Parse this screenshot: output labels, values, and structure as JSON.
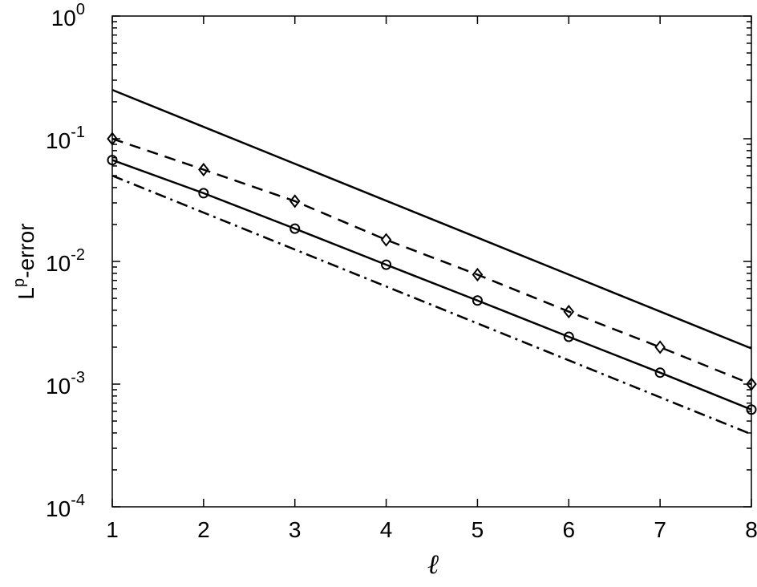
{
  "chart_data": {
    "type": "line",
    "xlabel": "ℓ",
    "ylabel": "L",
    "ylabel_superscript": "p",
    "ylabel_suffix": "-error",
    "x": [
      1,
      2,
      3,
      4,
      5,
      6,
      7,
      8
    ],
    "xlim": [
      1,
      8
    ],
    "xticks": [
      1,
      2,
      3,
      4,
      5,
      6,
      7,
      8
    ],
    "ylim": [
      0.0001,
      1
    ],
    "yscale": "log",
    "yticks": [
      {
        "value": 0.0001,
        "label": "10",
        "exponent": "-4"
      },
      {
        "value": 0.001,
        "label": "10",
        "exponent": "-3"
      },
      {
        "value": 0.01,
        "label": "10",
        "exponent": "-2"
      },
      {
        "value": 0.1,
        "label": "10",
        "exponent": "-1"
      },
      {
        "value": 1,
        "label": "10",
        "exponent": "0"
      }
    ],
    "minor_ticks": true,
    "box": true,
    "series": [
      {
        "color": "#000000",
        "dash": "solid",
        "marker": "none",
        "values": [
          0.25,
          0.125,
          0.0625,
          0.03125,
          0.015625,
          0.0078125,
          0.00390625,
          0.001953125
        ]
      },
      {
        "color": "#000000",
        "dash": "dashed",
        "marker": "diamond",
        "values": [
          0.1,
          0.056,
          0.031,
          0.015,
          0.0078,
          0.0039,
          0.002,
          0.001
        ]
      },
      {
        "color": "#000000",
        "dash": "solid",
        "marker": "circle",
        "values": [
          0.067,
          0.036,
          0.0185,
          0.0094,
          0.0048,
          0.00243,
          0.00124,
          0.00062
        ]
      },
      {
        "color": "#000000",
        "dash": "dashdot",
        "marker": "none",
        "values": [
          0.05,
          0.025,
          0.0125,
          0.00625,
          0.003125,
          0.0015625,
          0.00078125,
          0.000390625
        ]
      }
    ]
  }
}
